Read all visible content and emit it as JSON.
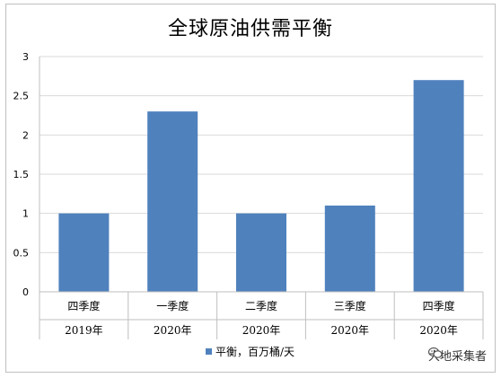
{
  "chart_data": {
    "type": "bar",
    "title": "全球原油供需平衡",
    "categories": [
      {
        "quarter": "四季度",
        "year": "2019年"
      },
      {
        "quarter": "一季度",
        "year": "2020年"
      },
      {
        "quarter": "二季度",
        "year": "2020年"
      },
      {
        "quarter": "三季度",
        "year": "2020年"
      },
      {
        "quarter": "四季度",
        "year": "2020年"
      }
    ],
    "series": [
      {
        "name": "平衡，百万桶/天",
        "values": [
          1.0,
          2.3,
          1.0,
          1.1,
          2.7
        ],
        "color": "#4f81bd"
      }
    ],
    "ylim": [
      0,
      3
    ],
    "yticks": [
      "0",
      "0.5",
      "1",
      "1.5",
      "2",
      "2.5",
      "3"
    ],
    "grid": true,
    "legend": "bottom"
  },
  "watermark": {
    "text": "大地采集者",
    "icon": "wechat-icon"
  }
}
